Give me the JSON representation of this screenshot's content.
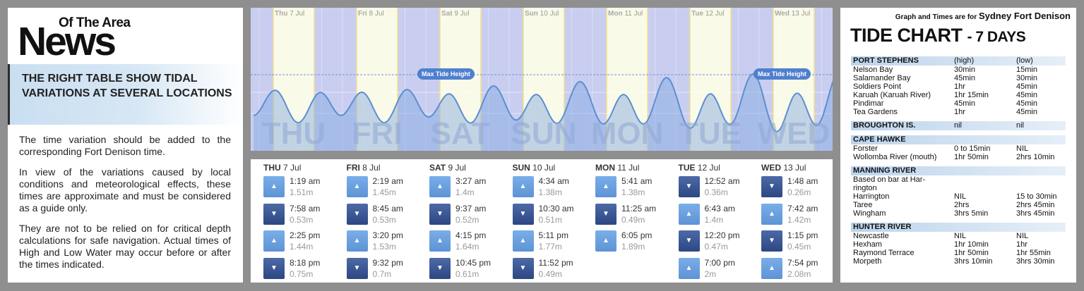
{
  "left": {
    "logo_sup": "Of The Area",
    "logo_main": "News",
    "banner": "THE RIGHT TABLE SHOW TIDAL VARIATIONS AT SEVERAL LOCATIONS",
    "p1": "The time variation should be added to the corresponding Fort Denison time.",
    "p2": "In view of the variations caused by local conditions and meteorological effects, these times are approximate and must be considered as a guide only.",
    "p3": "They are not to be relied on for critical depth calculations for safe navigation. Actual times of High and Low Water may occur before or after the times indicated."
  },
  "graph": {
    "days": [
      {
        "dow": "Thu",
        "date": "7 Jul",
        "big": "THU"
      },
      {
        "dow": "Fri",
        "date": "8 Jul",
        "big": "FRI"
      },
      {
        "dow": "Sat",
        "date": "9 Jul",
        "big": "SAT"
      },
      {
        "dow": "Sun",
        "date": "10 Jul",
        "big": "SUN"
      },
      {
        "dow": "Mon",
        "date": "11 Jul",
        "big": "MON"
      },
      {
        "dow": "Tue",
        "date": "12 Jul",
        "big": "TUE"
      },
      {
        "dow": "Wed",
        "date": "13 Jul",
        "big": "WED"
      }
    ],
    "max_label": "Max Tide Height",
    "colors": {
      "day": "#fafae8",
      "night": "#c9cef0",
      "wave": "#5b8fd2",
      "fill": "#7fa6de"
    }
  },
  "tides": [
    {
      "dow": "THU",
      "date": "7 Jul",
      "rows": [
        {
          "type": "high",
          "time": "1:19 am",
          "height": "1.51m"
        },
        {
          "type": "low",
          "time": "7:58 am",
          "height": "0.53m"
        },
        {
          "type": "high",
          "time": "2:25 pm",
          "height": "1.44m"
        },
        {
          "type": "low",
          "time": "8:18 pm",
          "height": "0.75m"
        }
      ]
    },
    {
      "dow": "FRI",
      "date": "8 Jul",
      "rows": [
        {
          "type": "high",
          "time": "2:19 am",
          "height": "1.45m"
        },
        {
          "type": "low",
          "time": "8:45 am",
          "height": "0.53m"
        },
        {
          "type": "high",
          "time": "3:20 pm",
          "height": "1.53m"
        },
        {
          "type": "low",
          "time": "9:32 pm",
          "height": "0.7m"
        }
      ]
    },
    {
      "dow": "SAT",
      "date": "9 Jul",
      "rows": [
        {
          "type": "high",
          "time": "3:27 am",
          "height": "1.4m"
        },
        {
          "type": "low",
          "time": "9:37 am",
          "height": "0.52m"
        },
        {
          "type": "high",
          "time": "4:15 pm",
          "height": "1.64m"
        },
        {
          "type": "low",
          "time": "10:45 pm",
          "height": "0.61m"
        }
      ]
    },
    {
      "dow": "SUN",
      "date": "10 Jul",
      "rows": [
        {
          "type": "high",
          "time": "4:34 am",
          "height": "1.38m"
        },
        {
          "type": "low",
          "time": "10:30 am",
          "height": "0.51m"
        },
        {
          "type": "high",
          "time": "5:11 pm",
          "height": "1.77m"
        },
        {
          "type": "low",
          "time": "11:52 pm",
          "height": "0.49m"
        }
      ]
    },
    {
      "dow": "MON",
      "date": "11 Jul",
      "rows": [
        {
          "type": "high",
          "time": "5:41 am",
          "height": "1.38m"
        },
        {
          "type": "low",
          "time": "11:25 am",
          "height": "0.49m"
        },
        {
          "type": "high",
          "time": "6:05 pm",
          "height": "1.89m"
        }
      ]
    },
    {
      "dow": "TUE",
      "date": "12 Jul",
      "rows": [
        {
          "type": "low",
          "time": "12:52 am",
          "height": "0.36m"
        },
        {
          "type": "high",
          "time": "6:43 am",
          "height": "1.4m"
        },
        {
          "type": "low",
          "time": "12:20 pm",
          "height": "0.47m"
        },
        {
          "type": "high",
          "time": "7:00 pm",
          "height": "2m"
        }
      ]
    },
    {
      "dow": "WED",
      "date": "13 Jul",
      "rows": [
        {
          "type": "low",
          "time": "1:48 am",
          "height": "0.26m"
        },
        {
          "type": "high",
          "time": "7:42 am",
          "height": "1.42m"
        },
        {
          "type": "low",
          "time": "1:15 pm",
          "height": "0.45m"
        },
        {
          "type": "high",
          "time": "7:54 pm",
          "height": "2.08m"
        }
      ]
    }
  ],
  "right": {
    "note": "Graph and Times are for",
    "note_place": "Sydney Fort Denison",
    "title": "TIDE CHART",
    "title_days": "- 7 DAYS",
    "sections": [
      {
        "name": "PORT STEPHENS",
        "col2": "(high)",
        "col3": "(low)",
        "rows": [
          [
            "Nelson Bay",
            "30min",
            "15min"
          ],
          [
            "Salamander Bay",
            "45min",
            "30min"
          ],
          [
            "Soldiers Point",
            "1hr",
            "45min"
          ],
          [
            "Karuah (Karuah River)",
            "1hr 15min",
            "45min"
          ],
          [
            "Pindimar",
            "45min",
            "45min"
          ],
          [
            "Tea Gardens",
            "1hr",
            "45min"
          ]
        ]
      },
      {
        "name": "BROUGHTON IS.",
        "col2": "nil",
        "col3": "nil",
        "rows": []
      },
      {
        "name": "CAPE HAWKE",
        "col2": "",
        "col3": "",
        "rows": [
          [
            "Forster",
            "0 to 15min",
            "NIL"
          ],
          [
            "Wollomba River (mouth)",
            "1hr 50min",
            "2hrs 10min"
          ]
        ]
      },
      {
        "name": "MANNING RIVER",
        "col2": "",
        "col3": "",
        "rows": [
          [
            "Based on bar at Har-",
            "",
            ""
          ],
          [
            "rington",
            "",
            ""
          ],
          [
            "Harrington",
            "NIL",
            "15 to 30min"
          ],
          [
            "Taree",
            "2hrs",
            "2hrs 45min"
          ],
          [
            "Wingham",
            "3hrs 5min",
            "3hrs 45min"
          ]
        ]
      },
      {
        "name": "HUNTER RIVER",
        "col2": "",
        "col3": "",
        "rows": [
          [
            "Newcastle",
            "NIL",
            "NIL"
          ],
          [
            "Hexham",
            "1hr 10min",
            "1hr"
          ],
          [
            "Raymond Terrace",
            "1hr 50min",
            "1hr 55min"
          ],
          [
            "Morpeth",
            "3hrs 10min",
            "3hrs 30min"
          ]
        ]
      }
    ]
  }
}
